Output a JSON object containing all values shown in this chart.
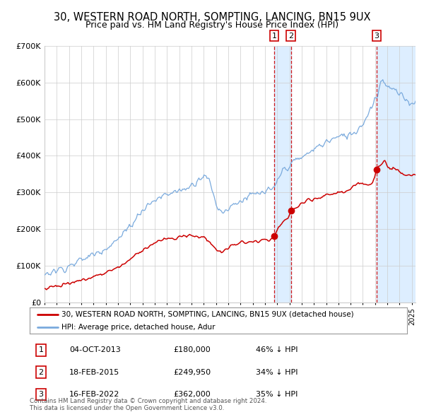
{
  "title": "30, WESTERN ROAD NORTH, SOMPTING, LANCING, BN15 9UX",
  "subtitle": "Price paid vs. HM Land Registry's House Price Index (HPI)",
  "legend_label_red": "30, WESTERN ROAD NORTH, SOMPTING, LANCING, BN15 9UX (detached house)",
  "legend_label_blue": "HPI: Average price, detached house, Adur",
  "footer": "Contains HM Land Registry data © Crown copyright and database right 2024.\nThis data is licensed under the Open Government Licence v3.0.",
  "transactions": [
    {
      "num": 1,
      "date": "04-OCT-2013",
      "date_x": 2013.75,
      "price": 180000,
      "pct": "46% ↓ HPI"
    },
    {
      "num": 2,
      "date": "18-FEB-2015",
      "date_x": 2015.13,
      "price": 249950,
      "pct": "34% ↓ HPI"
    },
    {
      "num": 3,
      "date": "16-FEB-2022",
      "date_x": 2022.13,
      "price": 362000,
      "pct": "35% ↓ HPI"
    }
  ],
  "ylim": [
    0,
    700000
  ],
  "xlim": [
    1995.0,
    2025.3
  ],
  "yticks": [
    0,
    100000,
    200000,
    300000,
    400000,
    500000,
    600000,
    700000
  ],
  "ytick_labels": [
    "£0",
    "£100K",
    "£200K",
    "£300K",
    "£400K",
    "£500K",
    "£600K",
    "£700K"
  ],
  "background_color": "#ffffff",
  "red_color": "#cc0000",
  "blue_color": "#7aaadd",
  "shade_color": "#ddeeff",
  "grid_color": "#cccccc",
  "title_fontsize": 10.5,
  "subtitle_fontsize": 9
}
